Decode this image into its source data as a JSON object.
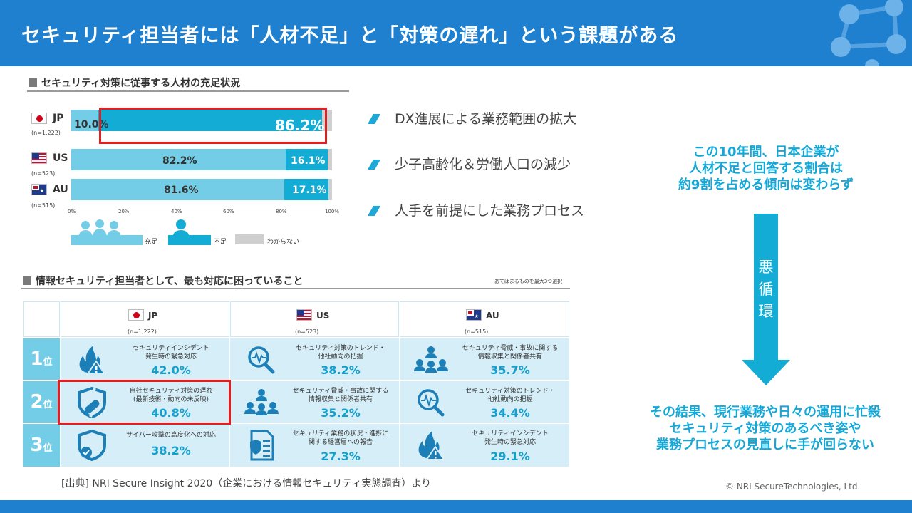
{
  "header": {
    "title": "セキュリティ担当者には「人材不足」と「対策の遅れ」という課題がある"
  },
  "chart_section": {
    "heading": "セキュリティ対策に従事する人材の充足状況",
    "chart_data": {
      "type": "bar",
      "orientation": "horizontal-stacked",
      "categories": [
        "JP",
        "US",
        "AU"
      ],
      "sample_sizes": [
        "(n=1,222)",
        "(n=523)",
        "(n=515)"
      ],
      "series": [
        {
          "name": "充足",
          "values": [
            10.0,
            82.2,
            81.6
          ]
        },
        {
          "name": "不足",
          "values": [
            86.2,
            16.1,
            17.1
          ]
        },
        {
          "name": "わからない",
          "values": [
            3.8,
            1.7,
            1.3
          ]
        }
      ],
      "value_labels": {
        "JP": [
          "10.0%",
          "86.2%"
        ],
        "US": [
          "82.2%",
          "16.1%"
        ],
        "AU": [
          "81.6%",
          "17.1%"
        ]
      },
      "xticks": [
        "0%",
        "20%",
        "40%",
        "60%",
        "80%",
        "100%"
      ],
      "xlim": [
        0,
        100
      ],
      "legend_position": "bottom",
      "highlight": "JP 不足",
      "colors": {
        "充足": "#74cde6",
        "不足": "#12acd4",
        "わからない": "#cfcfcf"
      }
    }
  },
  "reasons": [
    "DX進展による業務範囲の拡大",
    "少子高齢化＆労働人口の減少",
    "人手を前提にした業務プロセス"
  ],
  "callout_top": [
    "この10年間、日本企業が",
    "人材不足と回答する割合は",
    "約9割を占める傾向は変わらず"
  ],
  "arrow_label": [
    "悪",
    "循",
    "環"
  ],
  "callout_bottom": [
    "その結果、現行業務や日々の運用に忙殺",
    "セキュリティ対策のあるべき姿や",
    "業務プロセスの見直しに手が回らない"
  ],
  "table_section": {
    "heading": "情報セキュリティ担当者として、最も対応に困っていること",
    "note": "あてはまるものを最大3つ選択",
    "columns": [
      {
        "code": "JP",
        "n": "(n=1,222)"
      },
      {
        "code": "US",
        "n": "(n=523)"
      },
      {
        "code": "AU",
        "n": "(n=515)"
      }
    ],
    "ranks": [
      {
        "num": "1",
        "unit": "位"
      },
      {
        "num": "2",
        "unit": "位"
      },
      {
        "num": "3",
        "unit": "位"
      }
    ],
    "cells": [
      [
        {
          "icon": "fire-warning-icon",
          "lines": [
            "セキュリティインシデント",
            "発生時の緊急対応"
          ],
          "pct": "42.0%"
        },
        {
          "icon": "magnifier-pulse-icon",
          "lines": [
            "セキュリティ対策のトレンド・",
            "他社動向の把握"
          ],
          "pct": "38.2%"
        },
        {
          "icon": "people-network-icon",
          "lines": [
            "セキュリティ脅威・事故に関する",
            "情報収集と関係者共有"
          ],
          "pct": "35.7%"
        }
      ],
      [
        {
          "icon": "broken-shield-icon",
          "lines": [
            "自社セキュリティ対策の遅れ",
            "(最新技術・動向の未反映)"
          ],
          "pct": "40.8%"
        },
        {
          "icon": "people-network-icon",
          "lines": [
            "セキュリティ脅威・事故に関する",
            "情報収集と関係者共有"
          ],
          "pct": "35.2%"
        },
        {
          "icon": "magnifier-pulse-icon",
          "lines": [
            "セキュリティ対策のトレンド・",
            "他社動向の把握"
          ],
          "pct": "34.4%"
        }
      ],
      [
        {
          "icon": "shield-check-icon",
          "lines": [
            "サイバー攻撃の高度化への対応"
          ],
          "pct": "38.2%"
        },
        {
          "icon": "report-shield-icon",
          "lines": [
            "セキュリティ業務の状況・進捗に",
            "関する経営層への報告"
          ],
          "pct": "27.3%"
        },
        {
          "icon": "fire-warning-icon",
          "lines": [
            "セキュリティインシデント",
            "発生時の緊急対応"
          ],
          "pct": "29.1%"
        }
      ]
    ]
  },
  "source": "[出典] NRI Secure Insight 2020（企業における情報セキュリティ実態調査）より",
  "copyright": "© NRI SecureTechnologies, Ltd.",
  "colors": {
    "brand_blue": "#1f80d0",
    "accent_cyan": "#12acd4",
    "light_cyan": "#74cde6",
    "highlight_red": "#e02020"
  }
}
